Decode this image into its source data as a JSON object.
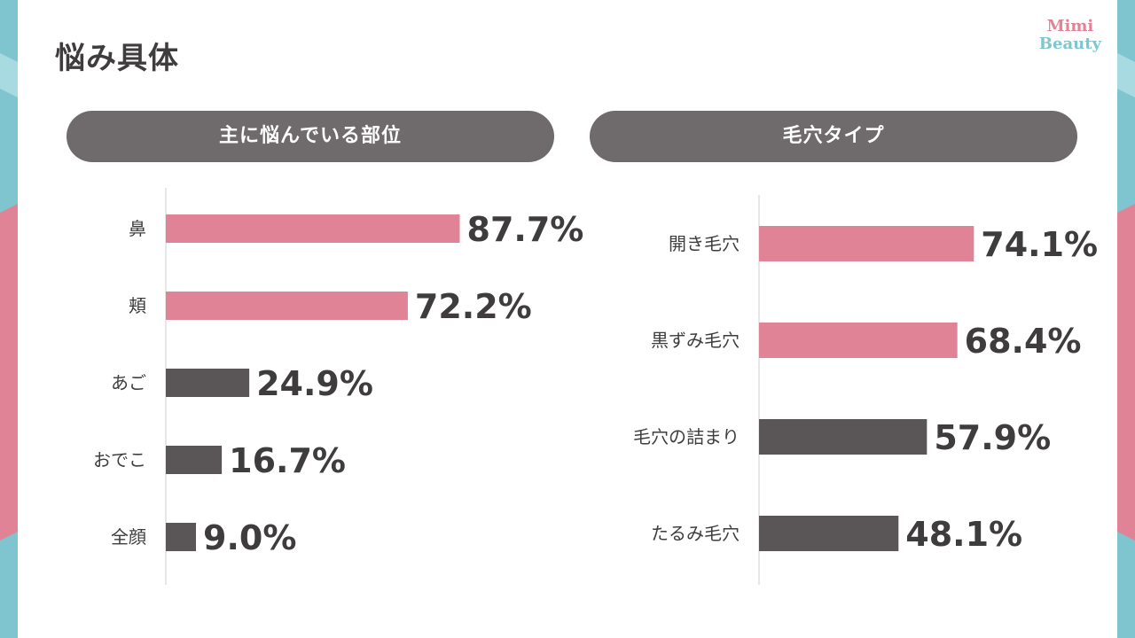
{
  "page": {
    "title": "悩み具体",
    "logo": {
      "line1": "Mimi",
      "line2": "Beauty"
    }
  },
  "colors": {
    "highlight": "#e08396",
    "dark": "#5a5657",
    "header": "#6f6b6c",
    "teal": "#7fc5cf",
    "pink": "#e08396"
  },
  "chart_data": [
    {
      "type": "bar",
      "orientation": "horizontal",
      "title": "主に悩んでいる部位",
      "categories": [
        "鼻",
        "頬",
        "あご",
        "おでこ",
        "全顔"
      ],
      "values": [
        87.7,
        72.2,
        24.9,
        16.7,
        9.0
      ],
      "value_labels": [
        "87.7%",
        "72.2%",
        "24.9%",
        "16.7%",
        "9.0%"
      ],
      "highlight_count": 2,
      "xlim": [
        0,
        100
      ]
    },
    {
      "type": "bar",
      "orientation": "horizontal",
      "title": "毛穴タイプ",
      "categories": [
        "開き毛穴",
        "黒ずみ毛穴",
        "毛穴の詰まり",
        "たるみ毛穴"
      ],
      "values": [
        74.1,
        68.4,
        57.9,
        48.1
      ],
      "value_labels": [
        "74.1%",
        "68.4%",
        "57.9%",
        "48.1%"
      ],
      "highlight_count": 2,
      "xlim": [
        0,
        100
      ]
    }
  ]
}
